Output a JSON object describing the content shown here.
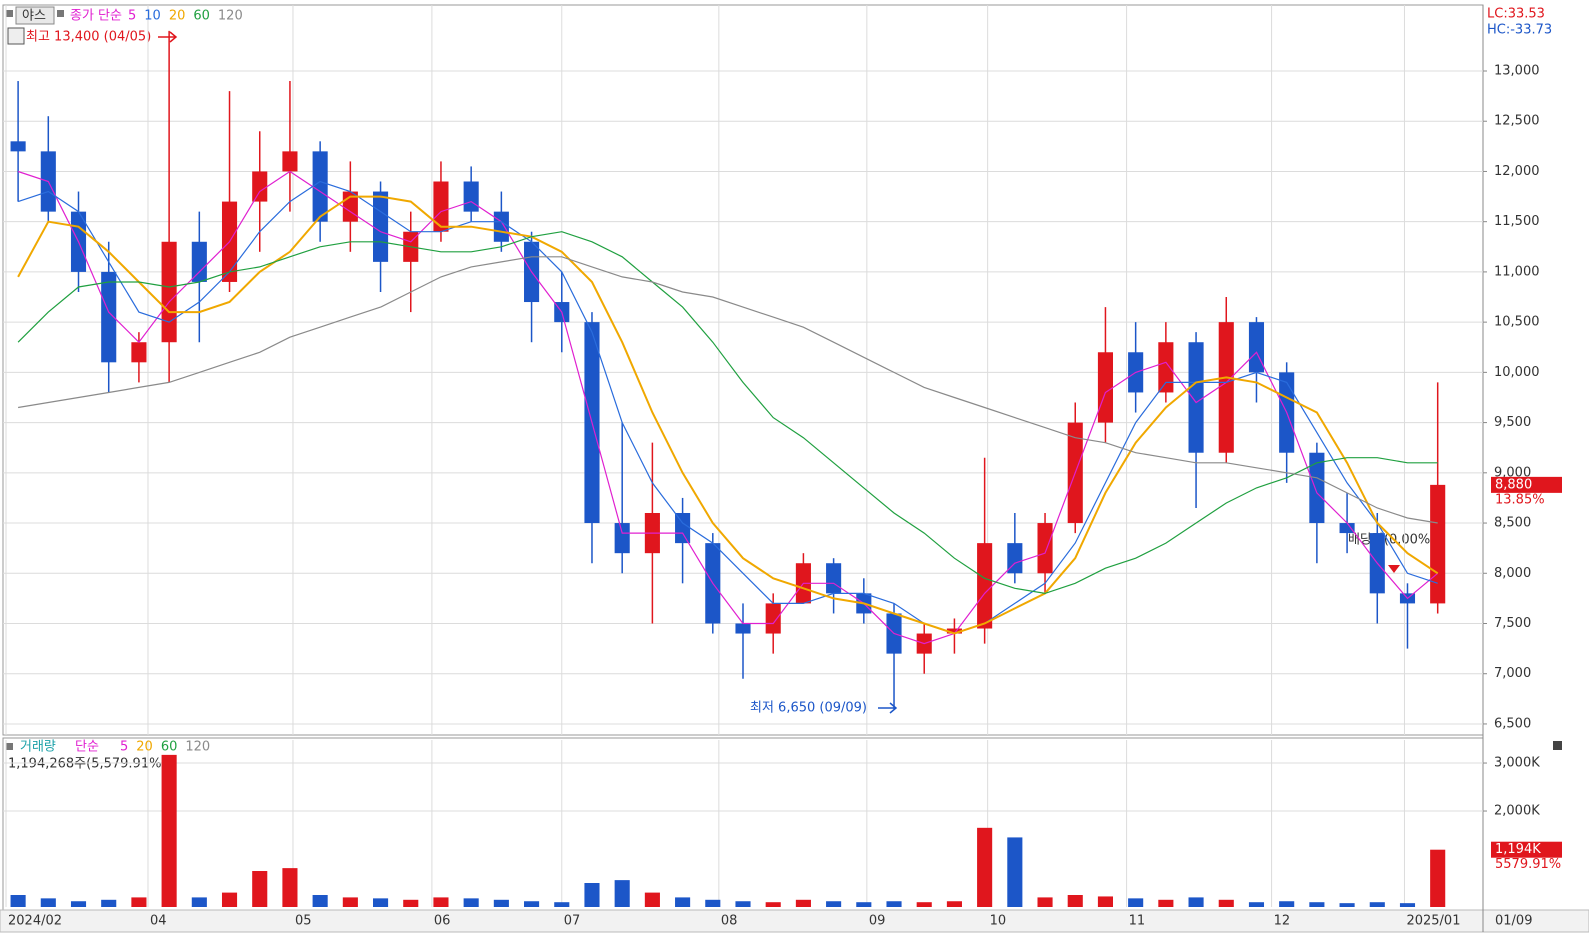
{
  "chart_data": [
    {
      "type": "candlestick",
      "name": "야스",
      "legend_label": "종가 단순",
      "open": [
        12300,
        12200,
        11600,
        11000,
        10100,
        10300,
        11300,
        10900,
        11700,
        12000,
        12200,
        11500,
        11800,
        11100,
        11400,
        11900,
        11600,
        11300,
        10700,
        10500,
        8500,
        8200,
        8600,
        8300,
        7500,
        7400,
        7700,
        8100,
        7800,
        7600,
        7200,
        7400,
        7450,
        8300,
        8000,
        8500,
        9500,
        10200,
        9800,
        10300,
        9200,
        10500,
        10000,
        9200,
        8500,
        8400,
        7800,
        7700
      ],
      "high": [
        12900,
        12550,
        11800,
        11300,
        10400,
        13400,
        11600,
        12800,
        12400,
        12900,
        12300,
        12100,
        11900,
        11600,
        12100,
        12050,
        11800,
        11400,
        11000,
        10600,
        9500,
        9300,
        8750,
        8400,
        7700,
        7800,
        8200,
        8150,
        7950,
        7700,
        7500,
        7550,
        9150,
        8600,
        8600,
        9700,
        10650,
        10500,
        10500,
        10400,
        10750,
        10550,
        10100,
        9300,
        8800,
        8600,
        7900,
        9900
      ],
      "low": [
        11700,
        11500,
        10800,
        9800,
        9900,
        9900,
        10300,
        10800,
        11200,
        11600,
        11300,
        11200,
        10800,
        10600,
        11300,
        11500,
        11200,
        10300,
        10200,
        8100,
        8000,
        7500,
        7900,
        7400,
        6950,
        7200,
        7700,
        7600,
        7500,
        6650,
        7000,
        7200,
        7300,
        7900,
        7800,
        8400,
        9300,
        9600,
        9700,
        8650,
        9100,
        9700,
        8900,
        8100,
        8200,
        7500,
        7250,
        7600
      ],
      "close": [
        12200,
        11600,
        11000,
        10100,
        10300,
        11300,
        10900,
        11700,
        12000,
        12200,
        11500,
        11800,
        11100,
        11400,
        11900,
        11600,
        11300,
        10700,
        10500,
        8500,
        8200,
        8600,
        8300,
        7500,
        7400,
        7700,
        8100,
        7800,
        7600,
        7200,
        7400,
        7450,
        8300,
        8000,
        8500,
        9500,
        10200,
        9800,
        10300,
        9200,
        10500,
        10000,
        9200,
        8500,
        8400,
        7800,
        7700,
        8880
      ],
      "up_color": "#e0161d",
      "down_color": "#1c56c8",
      "series": [
        {
          "name": "5",
          "color": "#e020d0",
          "values": [
            12000,
            11900,
            11300,
            10600,
            10300,
            10700,
            11000,
            11300,
            11800,
            12000,
            11800,
            11600,
            11400,
            11300,
            11600,
            11700,
            11500,
            11000,
            10600,
            9500,
            8400,
            8400,
            8400,
            7900,
            7500,
            7500,
            7900,
            7900,
            7700,
            7400,
            7300,
            7400,
            7800,
            8100,
            8200,
            9000,
            9800,
            10000,
            10100,
            9700,
            9900,
            10200,
            9600,
            8800,
            8500,
            8100,
            7750,
            8000
          ]
        },
        {
          "name": "10",
          "color": "#2a6cdc",
          "values": [
            11700,
            11800,
            11600,
            11100,
            10600,
            10500,
            10700,
            11000,
            11400,
            11700,
            11900,
            11800,
            11600,
            11400,
            11400,
            11500,
            11500,
            11300,
            11000,
            10400,
            9500,
            8900,
            8500,
            8300,
            8000,
            7700,
            7700,
            7800,
            7800,
            7700,
            7500,
            7400,
            7500,
            7700,
            7900,
            8300,
            8900,
            9500,
            9900,
            9900,
            9900,
            10000,
            9900,
            9400,
            8900,
            8500,
            8000,
            7900
          ]
        },
        {
          "name": "20",
          "color": "#f0a800",
          "values": [
            10950,
            11500,
            11450,
            11200,
            10900,
            10600,
            10600,
            10700,
            11000,
            11200,
            11550,
            11750,
            11750,
            11700,
            11450,
            11450,
            11400,
            11350,
            11200,
            10900,
            10300,
            9600,
            9000,
            8500,
            8150,
            7950,
            7850,
            7750,
            7700,
            7600,
            7500,
            7400,
            7500,
            7650,
            7800,
            8150,
            8800,
            9300,
            9650,
            9900,
            9950,
            9900,
            9750,
            9600,
            9100,
            8500,
            8200,
            8000
          ]
        },
        {
          "name": "60",
          "color": "#20a040",
          "values": [
            10300,
            10600,
            10850,
            10900,
            10900,
            10850,
            10900,
            11000,
            11050,
            11150,
            11250,
            11300,
            11300,
            11250,
            11200,
            11200,
            11250,
            11350,
            11400,
            11300,
            11150,
            10900,
            10650,
            10300,
            9900,
            9550,
            9350,
            9100,
            8850,
            8600,
            8400,
            8150,
            7950,
            7850,
            7800,
            7900,
            8050,
            8150,
            8300,
            8500,
            8700,
            8850,
            8950,
            9100,
            9150,
            9150,
            9100,
            9100
          ]
        },
        {
          "name": "120",
          "color": "#8a8a8a",
          "values": [
            9650,
            9700,
            9750,
            9800,
            9850,
            9900,
            10000,
            10100,
            10200,
            10350,
            10450,
            10550,
            10650,
            10800,
            10950,
            11050,
            11100,
            11150,
            11150,
            11050,
            10950,
            10900,
            10800,
            10750,
            10650,
            10550,
            10450,
            10300,
            10150,
            10000,
            9850,
            9750,
            9650,
            9550,
            9450,
            9350,
            9300,
            9200,
            9150,
            9100,
            9100,
            9050,
            9000,
            8950,
            8800,
            8650,
            8550,
            8500
          ]
        }
      ],
      "xlim": [
        -0.5,
        48.5
      ],
      "xticks": [
        {
          "value": -0.4,
          "label": "2024/02"
        },
        {
          "value": 4.3,
          "label": "04"
        },
        {
          "value": 9.1,
          "label": "05"
        },
        {
          "value": 13.7,
          "label": "06"
        },
        {
          "value": 18.0,
          "label": "07"
        },
        {
          "value": 23.2,
          "label": "08"
        },
        {
          "value": 28.1,
          "label": "09"
        },
        {
          "value": 32.1,
          "label": "10"
        },
        {
          "value": 36.7,
          "label": "11"
        },
        {
          "value": 41.5,
          "label": "12"
        },
        {
          "value": 45.9,
          "label": "2025/01"
        }
      ],
      "cursor_date": "01/09",
      "ylim": [
        6390,
        13657
      ],
      "yticks": [
        {
          "value": 6500,
          "label": "6,500"
        },
        {
          "value": 7000,
          "label": "7,000"
        },
        {
          "value": 7500,
          "label": "7,500"
        },
        {
          "value": 8000,
          "label": "8,000"
        },
        {
          "value": 8500,
          "label": "8,500"
        },
        {
          "value": 9000,
          "label": "9,000"
        },
        {
          "value": 9500,
          "label": "9,500"
        },
        {
          "value": 10000,
          "label": "10,000"
        },
        {
          "value": 10500,
          "label": "10,500"
        },
        {
          "value": 11000,
          "label": "11,000"
        },
        {
          "value": 11500,
          "label": "11,500"
        },
        {
          "value": 12000,
          "label": "12,000"
        },
        {
          "value": 12500,
          "label": "12,500"
        },
        {
          "value": 13000,
          "label": "13,000"
        }
      ],
      "grid": true,
      "high_label": "최고 13,400 (04/05)",
      "low_label": "최저 6,650 (09/09)",
      "event_label": "배당락(0.00%)",
      "lc_label": "LC:33.53",
      "hc_label": "HC:-33.73",
      "current_price": {
        "value": 8880,
        "label": "8,880"
      },
      "change_label": "13.85%"
    },
    {
      "type": "bar",
      "name": "거래량",
      "legend_label": "단순",
      "legend": [
        {
          "name": "5",
          "color": "#e020d0"
        },
        {
          "name": "20",
          "color": "#f0a800"
        },
        {
          "name": "60",
          "color": "#20a040"
        },
        {
          "name": "120",
          "color": "#8a8a8a"
        }
      ],
      "info": "1,194,268주(5,579.91%)",
      "values": [
        250,
        180,
        120,
        150,
        200,
        3170,
        200,
        300,
        750,
        810,
        250,
        200,
        180,
        150,
        200,
        180,
        150,
        120,
        100,
        500,
        560,
        300,
        200,
        150,
        120,
        100,
        150,
        120,
        100,
        120,
        100,
        120,
        1650,
        1450,
        200,
        250,
        220,
        180,
        150,
        200,
        150,
        100,
        120,
        100,
        80,
        100,
        80,
        1194
      ],
      "ylim": [
        0,
        3480
      ],
      "yticks": [
        {
          "value": 2000,
          "label": "2,000K"
        },
        {
          "value": 3000,
          "label": "3,000K"
        }
      ],
      "last_value": {
        "value": 1194,
        "label": "1,194K"
      },
      "ratio_label": "5579.91%"
    }
  ]
}
